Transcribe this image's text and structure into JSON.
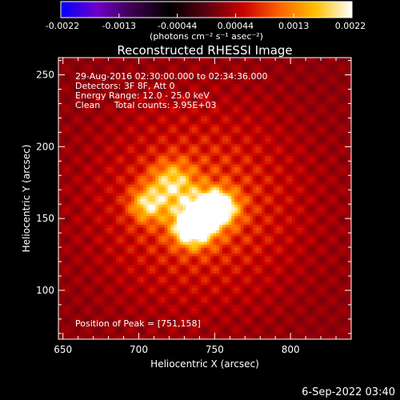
{
  "chart_data": {
    "type": "heatmap",
    "title": "Reconstructed RHESSI Image",
    "xlabel": "Heliocentric X (arcsec)",
    "ylabel": "Heliocentric Y (arcsec)",
    "xlim": [
      647,
      840
    ],
    "ylim": [
      66,
      262
    ],
    "xticks": [
      650,
      700,
      750,
      800
    ],
    "yticks": [
      100,
      150,
      200,
      250
    ],
    "grid": false,
    "info_lines": [
      "29-Aug-2016 02:30:00.000 to 02:34:36.000",
      "Detectors: 3F 8F, Att 0",
      "Energy Range: 12.0 - 25.0 keV",
      "Clean     Total counts: 3.95E+03"
    ],
    "peak_label": "Position of Peak = [751,158]",
    "peak": {
      "x": 751,
      "y": 158
    },
    "colorbar": {
      "range": [
        -0.0022,
        0.0022
      ],
      "ticks": [
        "-0.0022",
        "-0.0013",
        "-0.00044",
        "0.00044",
        "0.0013",
        "0.0022"
      ],
      "units_label": "(photons cm⁻² s⁻¹ asec⁻²)",
      "colors": [
        "#0000ff",
        "#6f00c8",
        "#3a004a",
        "#000000",
        "#5a0010",
        "#c80000",
        "#ff6000",
        "#ffc000",
        "#ffffff"
      ]
    },
    "image_model": {
      "background_level": 0.0004,
      "sources": [
        {
          "x": 751,
          "y": 158,
          "peak": 0.0022,
          "sigma_x": 9,
          "sigma_y": 8
        },
        {
          "x": 738,
          "y": 150,
          "peak": 0.0016,
          "sigma_x": 10,
          "sigma_y": 10
        },
        {
          "x": 706,
          "y": 160,
          "peak": 0.0012,
          "sigma_x": 8,
          "sigma_y": 8
        },
        {
          "x": 722,
          "y": 175,
          "peak": 0.0011,
          "sigma_x": 10,
          "sigma_y": 10
        },
        {
          "x": 735,
          "y": 142,
          "peak": 0.0013,
          "sigma_x": 8,
          "sigma_y": 8
        }
      ],
      "halo": {
        "x": 740,
        "y": 160,
        "peak": 0.0007,
        "sigma": 45
      },
      "ring_period": 14,
      "ring_amplitude": 0.00045
    }
  },
  "footer": {
    "date": "6-Sep-2022 03:40"
  }
}
